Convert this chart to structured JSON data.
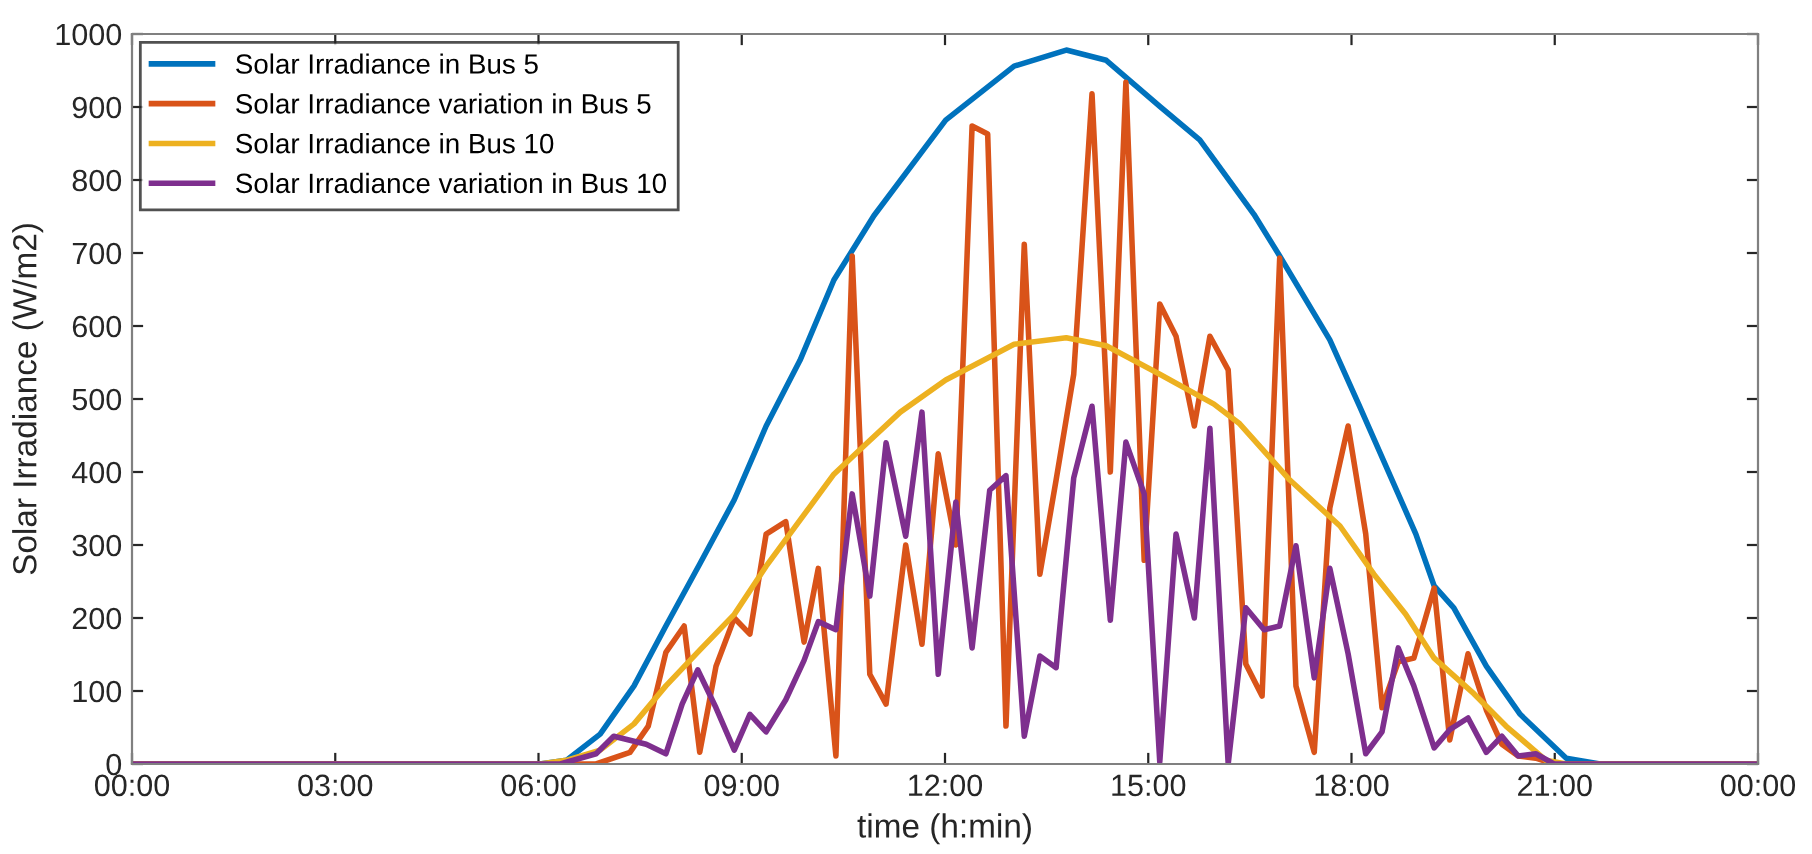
{
  "chart_data": {
    "type": "line",
    "xlabel": "time (h:min)",
    "ylabel": "Solar Irradiance (W/m2)",
    "xlim": [
      0,
      24
    ],
    "ylim": [
      0,
      1000
    ],
    "xticks": [
      {
        "value": 0,
        "label": "00:00"
      },
      {
        "value": 3,
        "label": "03:00"
      },
      {
        "value": 6,
        "label": "06:00"
      },
      {
        "value": 9,
        "label": "09:00"
      },
      {
        "value": 12,
        "label": "12:00"
      },
      {
        "value": 15,
        "label": "15:00"
      },
      {
        "value": 18,
        "label": "18:00"
      },
      {
        "value": 21,
        "label": "21:00"
      },
      {
        "value": 24,
        "label": "00:00"
      }
    ],
    "yticks": [
      0,
      100,
      200,
      300,
      400,
      500,
      600,
      700,
      800,
      900,
      1000
    ],
    "grid": false,
    "legend": "top left",
    "marker": "none",
    "line_style": "solid",
    "series": [
      {
        "name": "Solar Irradiance in Bus 5",
        "color": "#0072bd",
        "x": [
          0,
          6.02,
          6.41,
          6.91,
          7.41,
          7.88,
          8.38,
          8.89,
          9.36,
          9.86,
          10.36,
          10.95,
          12.01,
          13.02,
          13.79,
          14.38,
          15.17,
          15.76,
          16.56,
          16.94,
          17.68,
          18.12,
          18.95,
          19.22,
          19.51,
          19.99,
          20.49,
          21.17,
          21.67,
          24
        ],
        "values": [
          0,
          0,
          5,
          41,
          107,
          189,
          274,
          362,
          463,
          553,
          663,
          751,
          882,
          956,
          978,
          964,
          901,
          855,
          753,
          696,
          581,
          490,
          315,
          244,
          214,
          134,
          68,
          8,
          0,
          0
        ]
      },
      {
        "name": "Solar Irradiance variation in Bus 5",
        "color": "#d95319",
        "x": [
          0,
          6.6,
          6.85,
          7.35,
          7.62,
          7.88,
          8.15,
          8.38,
          8.62,
          8.89,
          9.12,
          9.36,
          9.65,
          9.92,
          10.13,
          10.39,
          10.63,
          10.89,
          11.13,
          11.42,
          11.66,
          11.9,
          12.16,
          12.4,
          12.63,
          12.9,
          13.17,
          13.4,
          13.64,
          13.9,
          14.17,
          14.44,
          14.67,
          14.94,
          15.17,
          15.41,
          15.68,
          15.91,
          16.18,
          16.44,
          16.68,
          16.94,
          17.18,
          17.45,
          17.68,
          17.95,
          18.21,
          18.45,
          18.69,
          18.92,
          19.22,
          19.45,
          19.72,
          19.99,
          20.22,
          20.46,
          20.72,
          20.99,
          24
        ],
        "values": [
          0,
          0,
          0,
          16,
          52,
          153,
          189,
          16,
          134,
          200,
          178,
          315,
          332,
          167,
          268,
          11,
          696,
          123,
          82,
          300,
          164,
          425,
          300,
          874,
          863,
          52,
          712,
          260,
          389,
          534,
          918,
          400,
          934,
          279,
          630,
          586,
          463,
          586,
          540,
          137,
          93,
          693,
          107,
          16,
          351,
          463,
          315,
          77,
          140,
          145,
          241,
          33,
          151,
          74,
          27,
          11,
          8,
          0,
          0
        ]
      },
      {
        "name": "Solar Irradiance in Bus 10",
        "color": "#edb120",
        "x": [
          0,
          6.02,
          6.41,
          6.91,
          7.41,
          7.88,
          8.38,
          8.89,
          9.36,
          9.86,
          10.36,
          10.83,
          11.34,
          12.01,
          13.02,
          13.79,
          14.38,
          15.17,
          15.97,
          16.35,
          17.09,
          17.83,
          18.33,
          18.8,
          19.22,
          19.81,
          20.28,
          20.87,
          21.17,
          24
        ],
        "values": [
          0,
          0,
          5,
          19,
          55,
          107,
          156,
          205,
          271,
          334,
          397,
          438,
          482,
          526,
          575,
          584,
          573,
          534,
          493,
          466,
          389,
          326,
          260,
          205,
          145,
          96,
          52,
          5,
          0,
          0
        ]
      },
      {
        "name": "Solar Irradiance variation in Bus 10",
        "color": "#7e2f8e",
        "x": [
          0,
          6.32,
          6.85,
          7.11,
          7.59,
          7.88,
          8.12,
          8.35,
          8.62,
          8.89,
          9.12,
          9.36,
          9.65,
          9.92,
          10.13,
          10.39,
          10.63,
          10.89,
          11.13,
          11.42,
          11.66,
          11.9,
          12.16,
          12.4,
          12.66,
          12.9,
          13.17,
          13.4,
          13.64,
          13.9,
          14.17,
          14.44,
          14.67,
          14.94,
          15.17,
          15.41,
          15.68,
          15.91,
          16.18,
          16.44,
          16.71,
          16.94,
          17.18,
          17.45,
          17.68,
          17.95,
          18.21,
          18.45,
          18.69,
          18.92,
          19.22,
          19.45,
          19.72,
          19.99,
          20.22,
          20.46,
          20.72,
          20.99,
          24
        ],
        "values": [
          0,
          0,
          14,
          38,
          27,
          14,
          82,
          129,
          77,
          19,
          68,
          44,
          88,
          142,
          195,
          184,
          370,
          230,
          440,
          312,
          482,
          123,
          359,
          159,
          375,
          395,
          38,
          148,
          132,
          392,
          490,
          197,
          441,
          370,
          3,
          315,
          200,
          460,
          0,
          214,
          184,
          189,
          299,
          118,
          268,
          151,
          14,
          44,
          159,
          107,
          22,
          47,
          63,
          16,
          38,
          11,
          14,
          0,
          0
        ]
      }
    ]
  }
}
